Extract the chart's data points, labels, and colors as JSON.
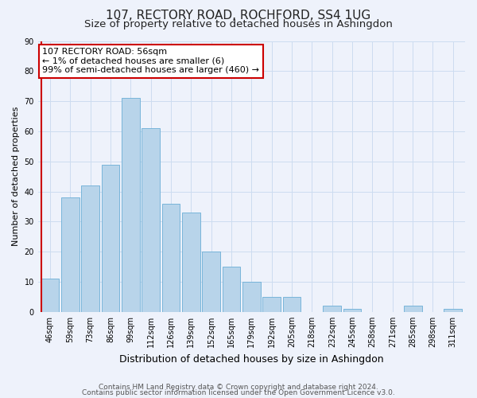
{
  "title": "107, RECTORY ROAD, ROCHFORD, SS4 1UG",
  "subtitle": "Size of property relative to detached houses in Ashingdon",
  "xlabel": "Distribution of detached houses by size in Ashingdon",
  "ylabel": "Number of detached properties",
  "bar_labels": [
    "46sqm",
    "59sqm",
    "73sqm",
    "86sqm",
    "99sqm",
    "112sqm",
    "126sqm",
    "139sqm",
    "152sqm",
    "165sqm",
    "179sqm",
    "192sqm",
    "205sqm",
    "218sqm",
    "232sqm",
    "245sqm",
    "258sqm",
    "271sqm",
    "285sqm",
    "298sqm",
    "311sqm"
  ],
  "bar_values": [
    11,
    38,
    42,
    49,
    71,
    61,
    36,
    33,
    20,
    15,
    10,
    5,
    5,
    0,
    2,
    1,
    0,
    0,
    2,
    0,
    1
  ],
  "bar_color": "#b8d4ea",
  "bar_edge_color": "#6aaed6",
  "annotation_text": "107 RECTORY ROAD: 56sqm\n← 1% of detached houses are smaller (6)\n99% of semi-detached houses are larger (460) →",
  "annotation_box_color": "#ffffff",
  "annotation_box_edge_color": "#cc0000",
  "red_line_color": "#cc0000",
  "ylim": [
    0,
    90
  ],
  "yticks": [
    0,
    10,
    20,
    30,
    40,
    50,
    60,
    70,
    80,
    90
  ],
  "grid_color": "#ccdcf0",
  "background_color": "#eef2fb",
  "footer_line1": "Contains HM Land Registry data © Crown copyright and database right 2024.",
  "footer_line2": "Contains public sector information licensed under the Open Government Licence v3.0.",
  "title_fontsize": 11,
  "subtitle_fontsize": 9.5,
  "xlabel_fontsize": 9,
  "ylabel_fontsize": 8,
  "tick_fontsize": 7,
  "footer_fontsize": 6.5,
  "ann_fontsize": 8
}
